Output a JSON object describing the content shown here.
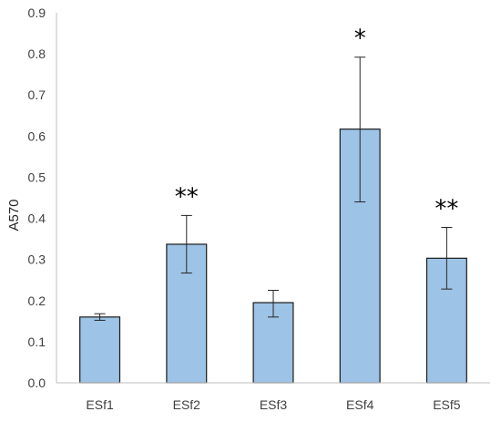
{
  "chart_data": {
    "type": "bar",
    "title": "",
    "xlabel": "",
    "ylabel": "A570",
    "categories": [
      "ESf1",
      "ESf2",
      "ESf3",
      "ESf4",
      "ESf5"
    ],
    "values": [
      0.16,
      0.337,
      0.195,
      0.617,
      0.303
    ],
    "error_low": [
      0.152,
      0.267,
      0.16,
      0.44,
      0.228
    ],
    "error_high": [
      0.168,
      0.407,
      0.225,
      0.792,
      0.378
    ],
    "significance": [
      "",
      "**",
      "",
      "*",
      "**"
    ],
    "ylim": [
      0,
      0.9
    ],
    "yticks": [
      "0.0",
      "0.1",
      "0.2",
      "0.3",
      "0.4",
      "0.5",
      "0.6",
      "0.7",
      "0.8",
      "0.9"
    ],
    "grid": false,
    "legend": "none",
    "bar_color": "#9dc3e6",
    "bar_edge_color": "#1a1a1a",
    "axis_color": "#bfbfbf"
  }
}
